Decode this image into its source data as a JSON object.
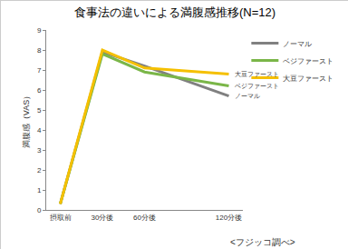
{
  "chart_data": {
    "type": "line",
    "title": "食事法の違いによる満腹感推移(N=12)",
    "y_label": "満腹感（VAS）",
    "annotations": [
      "<フジッコ調べ>"
    ],
    "x": [
      0,
      30,
      60,
      120
    ],
    "xlim": [
      -10,
      130
    ],
    "xticks": [
      {
        "value": 0,
        "label": "摂取前"
      },
      {
        "value": 30,
        "label": "30分後"
      },
      {
        "value": 60,
        "label": "60分後"
      },
      {
        "value": 120,
        "label": "120分後"
      }
    ],
    "series": [
      {
        "name": "ノーマル",
        "color": "#808080",
        "values": [
          0.3,
          7.9,
          7.2,
          5.7
        ]
      },
      {
        "name": "ベジファースト",
        "color": "#7ab648",
        "values": [
          0.3,
          7.8,
          6.9,
          6.2
        ]
      },
      {
        "name": "大豆ファースト",
        "color": "#f5c000",
        "values": [
          0.3,
          8.0,
          7.1,
          6.8
        ]
      }
    ],
    "ylim": [
      0,
      9
    ],
    "yticks": [
      0,
      1,
      2,
      3,
      4,
      5,
      6,
      7,
      8,
      9
    ],
    "grid": false,
    "legend": "upper right"
  }
}
